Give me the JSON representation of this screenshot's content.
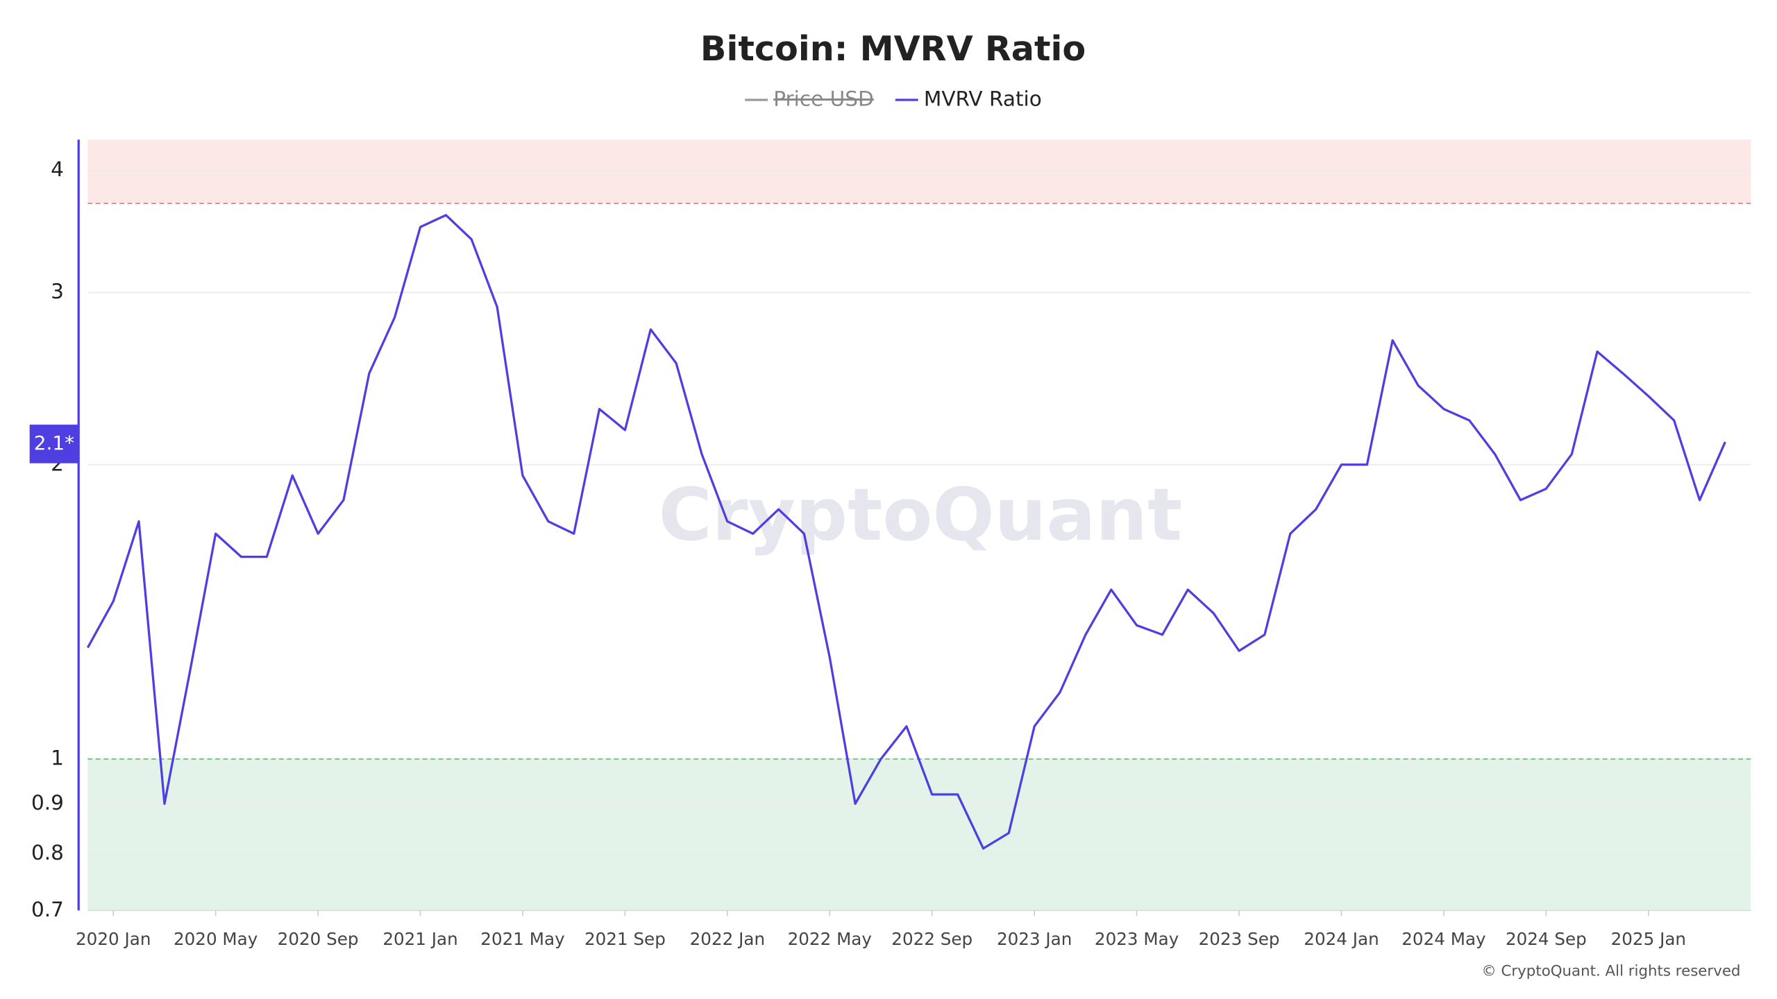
{
  "chart_data": {
    "type": "line",
    "title": "Bitcoin: MVRV Ratio",
    "hidden_series": [
      {
        "name": "Price USD",
        "color": "#9a9a9a"
      }
    ],
    "series": [
      {
        "name": "MVRV Ratio",
        "color": "#4f3ee0",
        "values": [
          1.3,
          1.45,
          1.75,
          0.9,
          1.23,
          1.7,
          1.61,
          1.61,
          1.95,
          1.7,
          1.84,
          2.48,
          2.83,
          3.5,
          3.6,
          3.4,
          2.9,
          1.95,
          1.75,
          1.7,
          2.28,
          2.17,
          2.75,
          2.54,
          2.05,
          1.75,
          1.7,
          1.8,
          1.7,
          1.27,
          0.9,
          1.0,
          1.08,
          0.92,
          0.92,
          0.81,
          0.84,
          1.08,
          1.17,
          1.34,
          1.49,
          1.37,
          1.34,
          1.49,
          1.41,
          1.29,
          1.34,
          1.7,
          1.8,
          2.0,
          2.0,
          2.68,
          2.41,
          2.28,
          2.22,
          2.05,
          1.84,
          1.89,
          2.05,
          2.61,
          2.48,
          2.35,
          2.22,
          1.84,
          2.11
        ]
      }
    ],
    "x": [
      "2019-12",
      "2020-01",
      "2020-02",
      "2020-03",
      "2020-04",
      "2020-05",
      "2020-06",
      "2020-07",
      "2020-08",
      "2020-09",
      "2020-10",
      "2020-11",
      "2020-12",
      "2021-01",
      "2021-02",
      "2021-03",
      "2021-04",
      "2021-05",
      "2021-06",
      "2021-07",
      "2021-08",
      "2021-09",
      "2021-10",
      "2021-11",
      "2021-12",
      "2022-01",
      "2022-02",
      "2022-03",
      "2022-04",
      "2022-05",
      "2022-06",
      "2022-07",
      "2022-08",
      "2022-09",
      "2022-10",
      "2022-11",
      "2022-12",
      "2023-01",
      "2023-02",
      "2023-03",
      "2023-04",
      "2023-05",
      "2023-06",
      "2023-07",
      "2023-08",
      "2023-09",
      "2023-10",
      "2023-11",
      "2023-12",
      "2024-01",
      "2024-02",
      "2024-03",
      "2024-04",
      "2024-05",
      "2024-06",
      "2024-07",
      "2024-08",
      "2024-09",
      "2024-10",
      "2024-11",
      "2024-12",
      "2025-01",
      "2025-02",
      "2025-03",
      "2025-04"
    ],
    "xlim": [
      "2019-12",
      "2025-05"
    ],
    "xticks": [
      {
        "value": "2020-01",
        "label": "2020 Jan"
      },
      {
        "value": "2020-05",
        "label": "2020 May"
      },
      {
        "value": "2020-09",
        "label": "2020 Sep"
      },
      {
        "value": "2021-01",
        "label": "2021 Jan"
      },
      {
        "value": "2021-05",
        "label": "2021 May"
      },
      {
        "value": "2021-09",
        "label": "2021 Sep"
      },
      {
        "value": "2022-01",
        "label": "2022 Jan"
      },
      {
        "value": "2022-05",
        "label": "2022 May"
      },
      {
        "value": "2022-09",
        "label": "2022 Sep"
      },
      {
        "value": "2023-01",
        "label": "2023 Jan"
      },
      {
        "value": "2023-05",
        "label": "2023 May"
      },
      {
        "value": "2023-09",
        "label": "2023 Sep"
      },
      {
        "value": "2024-01",
        "label": "2024 Jan"
      },
      {
        "value": "2024-05",
        "label": "2024 May"
      },
      {
        "value": "2024-09",
        "label": "2024 Sep"
      },
      {
        "value": "2025-01",
        "label": "2025 Jan"
      }
    ],
    "ylim": [
      0.7,
      4.3
    ],
    "yticks": [
      0.7,
      0.8,
      0.9,
      1,
      2,
      3,
      4
    ],
    "log_scale": true,
    "grid": true,
    "overvalued_line": 3.7,
    "undervalued_line": 1,
    "current_value": 2.1,
    "current_value_label": "2.1*",
    "watermark": "CryptoQuant",
    "footer": "© CryptoQuant. All rights reserved"
  }
}
